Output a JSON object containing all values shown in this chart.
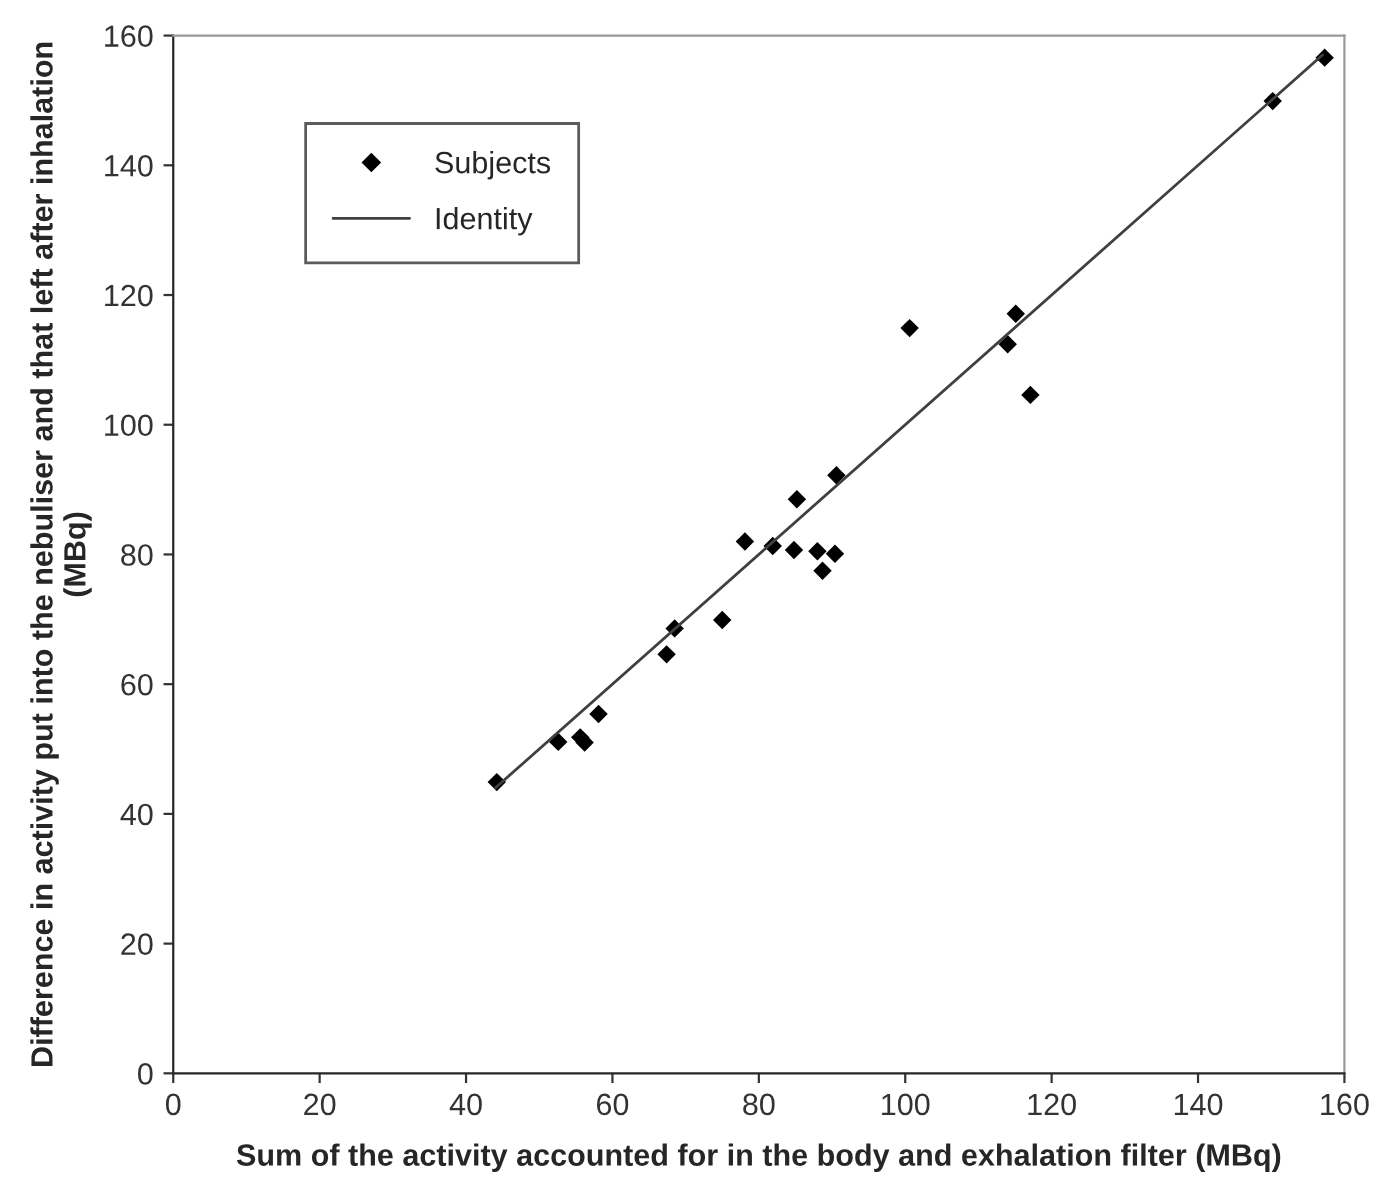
{
  "chart_data": {
    "type": "scatter",
    "xlabel": "Sum of the activity accounted for in the body and exhalation filter (MBq)",
    "ylabel": "Difference in activity put into the nebuliser and that left after inhalation (MBq)",
    "xlim": [
      0,
      160
    ],
    "ylim": [
      0,
      160
    ],
    "xticks": [
      0,
      20,
      40,
      60,
      80,
      100,
      120,
      140,
      160
    ],
    "yticks": [
      0,
      20,
      40,
      60,
      80,
      100,
      120,
      140,
      160
    ],
    "grid": false,
    "legend": "top left",
    "series": [
      {
        "name": "Subjects",
        "marker": "diamond",
        "color": "#000000",
        "x": [
          44.2,
          52.6,
          55.6,
          56.2,
          58.1,
          67.4,
          68.5,
          75.0,
          78.1,
          81.9,
          84.8,
          85.2,
          88.0,
          88.7,
          90.4,
          90.6,
          100.6,
          114.0,
          115.1,
          117.1,
          150.2,
          157.3
        ],
        "values": [
          44.9,
          51.1,
          51.8,
          51.0,
          55.4,
          64.6,
          68.6,
          69.9,
          82.0,
          81.3,
          80.7,
          88.5,
          80.5,
          77.5,
          80.1,
          92.2,
          114.9,
          112.4,
          117.1,
          104.6,
          149.9,
          156.6
        ]
      },
      {
        "name": "Identity",
        "type": "line",
        "color": "#404040",
        "line_style": "solid",
        "x": [
          44,
          157
        ],
        "values": [
          44,
          157
        ]
      }
    ]
  }
}
